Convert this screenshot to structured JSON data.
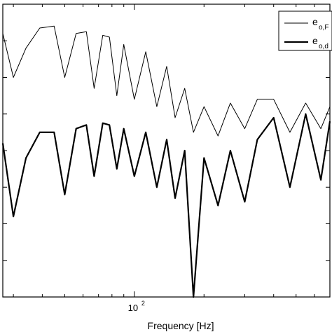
{
  "chart_data": {
    "type": "line",
    "title": "",
    "xlabel": "Frequency [Hz]",
    "ylabel": "",
    "x_scale": "log",
    "xlim": [
      27,
      700
    ],
    "x_ticks": [
      {
        "base": "10",
        "exponent": "2",
        "value": 100
      }
    ],
    "ylim": [
      0,
      8
    ],
    "grid": false,
    "legend_position": "top-right",
    "series": [
      {
        "name_main": "e",
        "name_sub": "o,F",
        "line_style": "thin",
        "x": [
          27,
          30,
          34,
          39,
          45,
          50,
          56,
          62,
          67,
          73,
          78,
          84,
          90,
          100,
          112,
          125,
          138,
          150,
          165,
          180,
          200,
          230,
          260,
          300,
          340,
          400,
          470,
          550,
          640,
          700
        ],
        "y": [
          7.2,
          6.0,
          6.8,
          7.35,
          7.4,
          6.0,
          7.2,
          7.25,
          5.7,
          7.15,
          7.1,
          5.5,
          6.9,
          5.4,
          6.7,
          5.2,
          6.3,
          4.9,
          5.7,
          4.5,
          5.2,
          4.4,
          5.3,
          4.6,
          5.4,
          5.4,
          4.5,
          5.3,
          4.6,
          5.2
        ]
      },
      {
        "name_main": "e",
        "name_sub": "o,d",
        "line_style": "thick",
        "x": [
          27,
          30,
          34,
          39,
          45,
          50,
          56,
          62,
          67,
          73,
          78,
          84,
          90,
          100,
          112,
          125,
          138,
          150,
          165,
          180,
          200,
          230,
          260,
          300,
          340,
          400,
          470,
          550,
          640,
          700
        ],
        "y": [
          4.2,
          2.2,
          3.8,
          4.5,
          4.5,
          2.8,
          4.6,
          4.7,
          3.3,
          4.75,
          4.7,
          3.5,
          4.6,
          3.3,
          4.5,
          3.0,
          4.3,
          2.7,
          4.0,
          0.0,
          3.8,
          2.5,
          4.0,
          2.6,
          4.3,
          4.9,
          3.0,
          5.0,
          3.2,
          4.8
        ]
      }
    ]
  }
}
